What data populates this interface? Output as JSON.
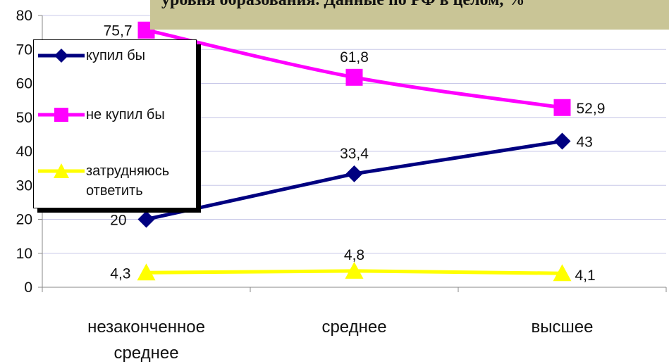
{
  "chart_data": {
    "type": "line",
    "title": "уровня образования. Данные по РФ в целом, %",
    "categories": [
      [
        "незаконченное",
        "среднее"
      ],
      [
        "среднее"
      ],
      [
        "высшее"
      ]
    ],
    "ylim": [
      0,
      80
    ],
    "yticks": [
      0,
      10,
      20,
      30,
      40,
      50,
      60,
      70,
      80
    ],
    "grid": true,
    "legend_position": "left",
    "series": [
      {
        "name": "купил бы",
        "values": [
          20,
          33.4,
          43
        ],
        "labels": [
          "20",
          "33,4",
          "43"
        ],
        "color": "#000080",
        "marker": "diamond"
      },
      {
        "name": "не купил бы",
        "values": [
          75.7,
          61.8,
          52.9
        ],
        "labels": [
          "75,7",
          "61,8",
          "52,9"
        ],
        "color": "#ff00ff",
        "marker": "square"
      },
      {
        "name": "затрудняюсь ответить",
        "name_lines": [
          "затрудняюсь",
          "ответить"
        ],
        "values": [
          4.3,
          4.8,
          4.1
        ],
        "labels": [
          "4,3",
          "4,8",
          "4,1"
        ],
        "color": "#ffff00",
        "marker": "triangle"
      }
    ]
  }
}
